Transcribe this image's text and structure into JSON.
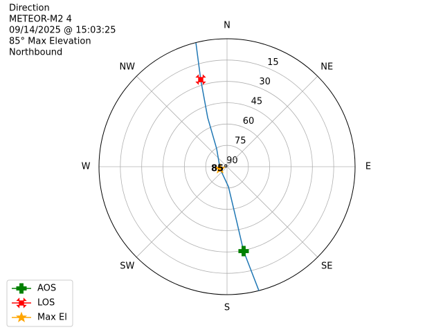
{
  "chart_data": {
    "type": "polar",
    "title": [
      "Direction",
      "METEOR-M2 4",
      "09/14/2025 @ 15:03:25",
      "85° Max Elevation",
      "Northbound"
    ],
    "xticks": [
      {
        "value": 0,
        "label": "N"
      },
      {
        "value": 45,
        "label": "NE"
      },
      {
        "value": 90,
        "label": "E"
      },
      {
        "value": 135,
        "label": "SE"
      },
      {
        "value": 180,
        "label": "S"
      },
      {
        "value": 225,
        "label": "SW"
      },
      {
        "value": 270,
        "label": "W"
      },
      {
        "value": 315,
        "label": "NW"
      }
    ],
    "ylim": [
      90,
      0
    ],
    "yticks": [
      15,
      30,
      45,
      60,
      75,
      90
    ],
    "grid": true,
    "series": [
      {
        "name": null,
        "kind": "line",
        "color": "#1f77b4",
        "x": [
          165.6,
          168.9,
          170,
          176,
          253.3,
          330,
          338.5,
          343.2,
          345.9
        ],
        "values": [
          0,
          29.5,
          51,
          75.9,
          84.9,
          75.4,
          52.9,
          26,
          0.2
        ]
      },
      {
        "name": "AOS",
        "kind": "marker",
        "marker": "plus",
        "color": "green",
        "x": [
          168.9
        ],
        "values": [
          29.5
        ]
      },
      {
        "name": "LOS",
        "kind": "marker",
        "marker": "x",
        "color": "red",
        "x": [
          343.2
        ],
        "values": [
          26
        ]
      },
      {
        "name": "Max El",
        "kind": "marker",
        "marker": "star",
        "color": "orange",
        "x": [
          253.3
        ],
        "values": [
          84.9
        ]
      }
    ],
    "annotation": "85°",
    "legend": "lower left"
  }
}
